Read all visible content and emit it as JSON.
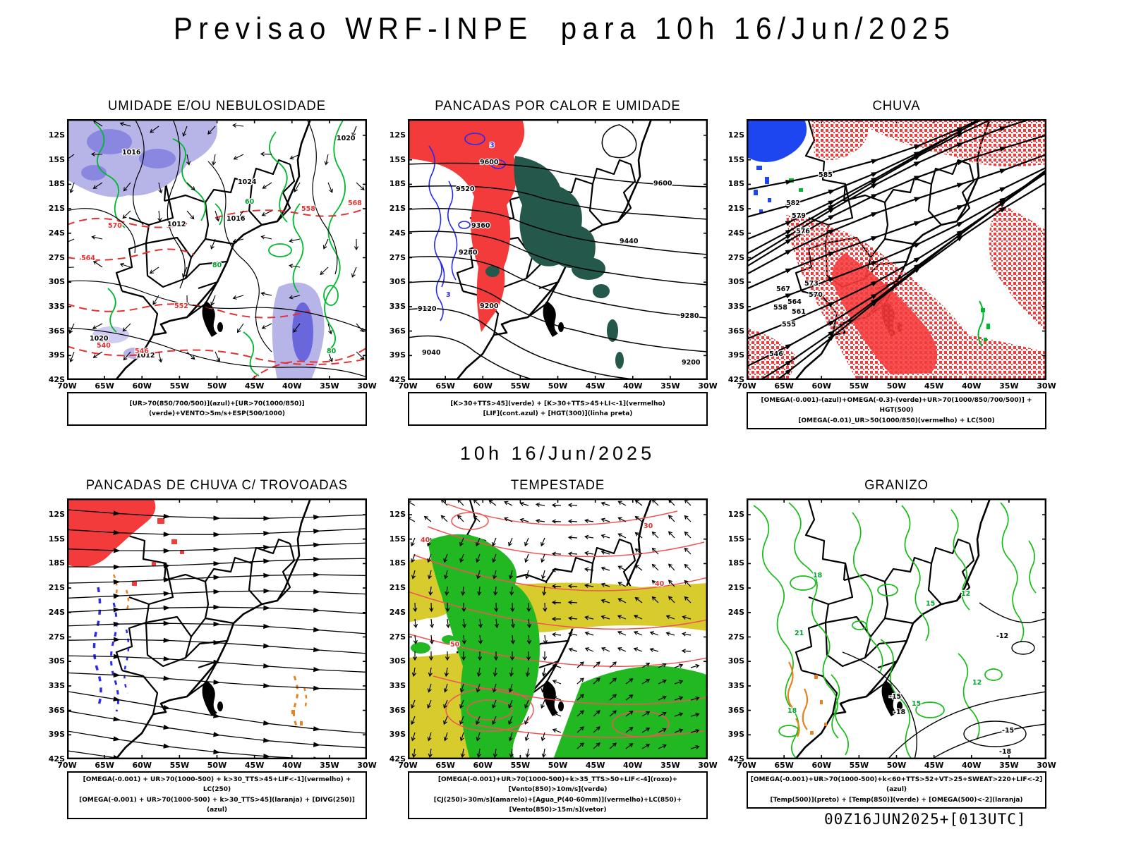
{
  "header": {
    "title": "Previsao WRF-INPE  para 10h 16/Jun/2025"
  },
  "subtitle": "10h 16/Jun/2025",
  "footer": {
    "timestamp": "00Z16JUN2025+[013UTC]"
  },
  "axes": {
    "lat_ticks": [
      "12S",
      "15S",
      "18S",
      "21S",
      "24S",
      "27S",
      "30S",
      "33S",
      "36S",
      "39S",
      "42S"
    ],
    "lon_ticks": [
      "70W",
      "65W",
      "60W",
      "55W",
      "50W",
      "45W",
      "40W",
      "35W",
      "30W"
    ]
  },
  "colors": {
    "shade_blue_light": "#b7b4e8",
    "shade_purple": "#8a87e0",
    "shade_purple_dark": "#6a67dd",
    "shade_red": "#f43b3b",
    "shade_teal": "#24584a",
    "shade_green": "#22b822",
    "shade_yellow": "#d8cb2e",
    "shade_blue": "#1e46f0",
    "contour_green": "#00b830",
    "contour_red_dashed": "#e33030",
    "contour_blue": "#2828f0",
    "contour_orange": "#e8821e",
    "contour_red_thin": "#ef5555",
    "contour_green_hail": "#17bd17"
  },
  "panels": [
    {
      "id": "umidade",
      "title": "UMIDADE E/OU NEBULOSIDADE",
      "caption_lines": [
        "[UR>70(850/700/500)](azul)+[UR>70(1000/850)](verde)+VENTO>5m/s+ESP(500/1000)"
      ],
      "labels": {
        "black": [
          "1016",
          "1012",
          "1016",
          "1020",
          "1024",
          "1020",
          "1012"
        ],
        "red": [
          "570",
          "564",
          "558",
          "552",
          "546",
          "540",
          "568"
        ],
        "green": [
          "80",
          "60",
          "80"
        ]
      }
    },
    {
      "id": "pancadas-calor-umidade",
      "title": "PANCADAS POR CALOR E UMIDADE",
      "caption_lines": [
        "[K>30+TTS>45](verde) + [K>30+TTS>45+LI<-1](vermelho)",
        "[LIF](cont.azul) + [HGT(300)](linha preta)"
      ],
      "labels": {
        "black": [
          "9600",
          "9600",
          "9520",
          "9440",
          "9360",
          "9280",
          "9280",
          "9200",
          "9200",
          "9120",
          "9040"
        ],
        "blue": [
          "3",
          "3"
        ]
      }
    },
    {
      "id": "chuva",
      "title": "CHUVA",
      "caption_lines": [
        "[OMEGA(-0.001)-(azul)+OMEGA(-0.3)-(verde)+UR>70(1000/850/700/500)] + HGT(500)",
        "[OMEGA(-0.01)_UR>50(1000/850)(vermelho) + LC(500)"
      ],
      "labels": {
        "black": [
          "585",
          "582",
          "579",
          "576",
          "573",
          "570",
          "567",
          "564",
          "561",
          "558",
          "555",
          "546"
        ]
      }
    },
    {
      "id": "pancadas-chuva-trovoadas",
      "title": "PANCADAS DE CHUVA C/ TROVOADAS",
      "caption_lines": [
        "[OMEGA(-0.001) + UR>70(1000-500) + k>30_TTS>45+LIF<-1](vermelho) + LC(250)",
        "[OMEGA(-0.001) + UR>70(1000-500) + k>30_TTS>45](laranja) + [DIVG(250)](azul)"
      ],
      "labels": {}
    },
    {
      "id": "tempestade",
      "title": "TEMPESTADE",
      "caption_lines": [
        "[OMEGA(-0.001)+UR>70(1000-500)+k>35_TTS>50+LIF<-4](roxo)+[Vento(850)>10m/s](verde)",
        "[CJ(250)>30m/s](amarelo)+[Agua_P(40-60mm)](vermelho)+LC(850)+[Vento(850)>15m/s](vetor)"
      ],
      "labels": {
        "red": [
          "40",
          "30",
          "40",
          "50"
        ]
      }
    },
    {
      "id": "granizo",
      "title": "GRANIZO",
      "caption_lines": [
        "[OMEGA(-0.001)+UR>70(1000-500)+k<60+TTS>52+VT>25+SWEAT>220+LIF<-2](azul)",
        "[Temp(500)](preto) + [Temp(850)](verde) + [OMEGA(500)<-2](laranja)"
      ],
      "labels": {
        "green": [
          "18",
          "15",
          "21",
          "12",
          "15",
          "18",
          "12"
        ],
        "black": [
          "-12",
          "-15",
          "-18",
          "-15",
          "-18"
        ]
      }
    }
  ]
}
